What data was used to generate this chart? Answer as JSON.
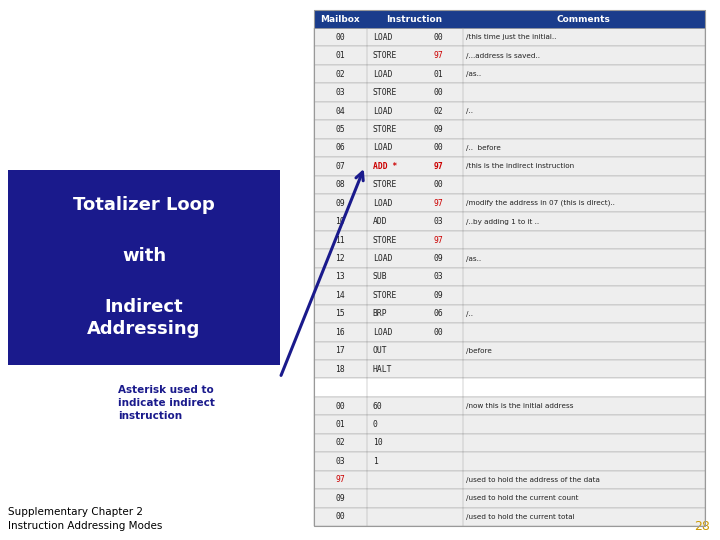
{
  "title_bg": "#1a1a8c",
  "title_fg": "#ffffff",
  "header": [
    "Mailbox",
    "Instruction",
    "Comments"
  ],
  "header_bg": "#1a3c8c",
  "header_fg": "#ffffff",
  "rows": [
    [
      "00",
      "LOAD",
      "00",
      "/this time just the initial.."
    ],
    [
      "01",
      "STORE",
      "97",
      "/...address is saved.."
    ],
    [
      "02",
      "LOAD",
      "01",
      "/as.."
    ],
    [
      "03",
      "STORE",
      "00",
      ""
    ],
    [
      "04",
      "LOAD",
      "02",
      "/.."
    ],
    [
      "05",
      "STORE",
      "09",
      ""
    ],
    [
      "06",
      "LOAD",
      "00",
      "/..  before"
    ],
    [
      "07",
      "ADD *",
      "97",
      "/this is the indirect instruction"
    ],
    [
      "08",
      "STORE",
      "00",
      ""
    ],
    [
      "09",
      "LOAD",
      "97",
      "/modify the address in 07 (this is direct).."
    ],
    [
      "10",
      "ADD",
      "03",
      "/..by adding 1 to it .."
    ],
    [
      "11",
      "STORE",
      "97",
      ""
    ],
    [
      "12",
      "LOAD",
      "09",
      "/as.."
    ],
    [
      "13",
      "SUB",
      "03",
      ""
    ],
    [
      "14",
      "STORE",
      "09",
      ""
    ],
    [
      "15",
      "BRP",
      "06",
      "/.."
    ],
    [
      "16",
      "LOAD",
      "00",
      ""
    ],
    [
      "17",
      "OUT",
      "",
      "/before"
    ],
    [
      "18",
      "HALT",
      "",
      ""
    ],
    [
      "",
      "",
      "",
      ""
    ],
    [
      "00",
      "60",
      "",
      "/now this is the initial address"
    ],
    [
      "01",
      "0",
      "",
      ""
    ],
    [
      "02",
      "10",
      "",
      ""
    ],
    [
      "03",
      "1",
      "",
      ""
    ],
    [
      "97",
      "",
      "",
      "/used to hold the address of the data"
    ],
    [
      "09",
      "",
      "",
      "/used to hold the current count"
    ],
    [
      "00",
      "",
      "",
      "/used to hold the current total"
    ]
  ],
  "red_rows_operand": [
    1,
    7,
    9,
    11
  ],
  "red_rows_mailbox": [
    24
  ],
  "red_instr_row": [
    7
  ],
  "red_data_row": [
    20
  ],
  "red_color": "#cc0000",
  "normal_row_bg": "#eeeeee",
  "white_row_bg": "#ffffff",
  "grid_color": "#999999",
  "arrow_color": "#1a1a8c",
  "annotation_text": "Asterisk used to\nindicate indirect\ninstruction",
  "annotation_color": "#1a1a8c",
  "footer_text1": "Supplementary Chapter 2",
  "footer_text2": "Instruction Addressing Modes",
  "page_num": "28",
  "page_num_color": "#cc9900"
}
